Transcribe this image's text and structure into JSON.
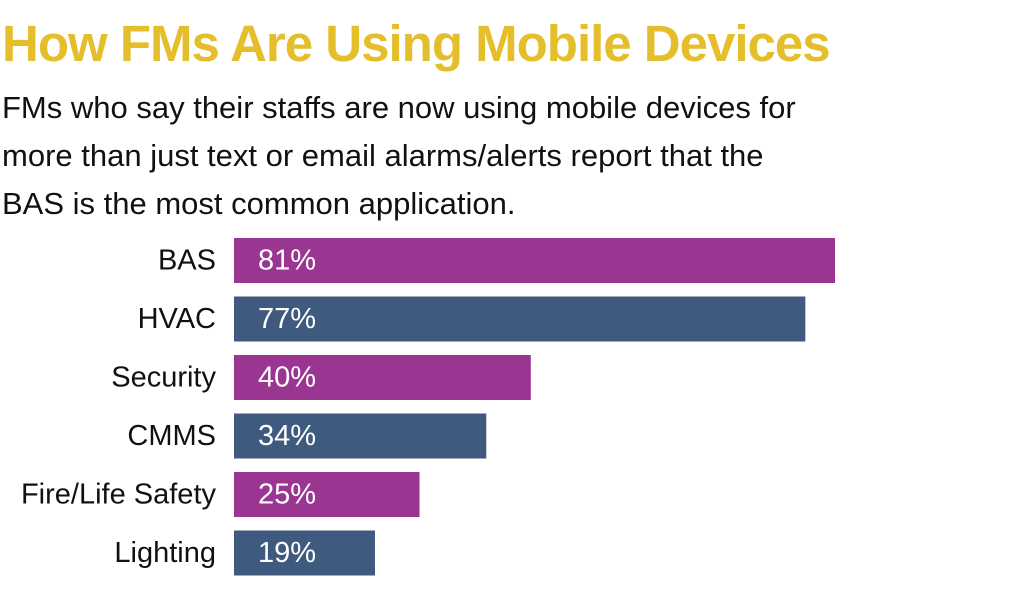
{
  "header": {
    "title": "How FMs Are Using Mobile Devices",
    "subtitle_lines": [
      "FMs who say their staffs are now using mobile devices for",
      "more than just text or email alarms/alerts report that the",
      "BAS is the most common application."
    ]
  },
  "colors": {
    "title": "#e5be2c",
    "bar_odd": "#9b3592",
    "bar_even": "#3e5a7e",
    "bar_label": "#ffffff",
    "category_label": "#111111"
  },
  "chart_data": {
    "type": "bar",
    "orientation": "horizontal",
    "title": "How FMs Are Using Mobile Devices",
    "categories": [
      "BAS",
      "HVAC",
      "Security",
      "CMMS",
      "Fire/Life Safety",
      "Lighting"
    ],
    "values": [
      81,
      77,
      40,
      34,
      25,
      19
    ],
    "value_labels": [
      "81%",
      "77%",
      "40%",
      "34%",
      "25%",
      "19%"
    ],
    "unit": "%",
    "xlim": [
      0,
      100
    ],
    "grid": false,
    "legend": "none"
  }
}
